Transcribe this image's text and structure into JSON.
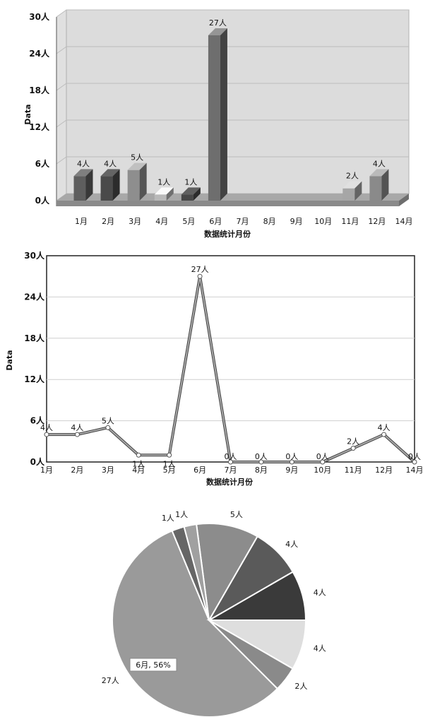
{
  "chart_data": [
    {
      "type": "bar",
      "style": "3d",
      "categories": [
        "1月",
        "2月",
        "3月",
        "4月",
        "5月",
        "6月",
        "7月",
        "8月",
        "9月",
        "10月",
        "11月",
        "12月",
        "14月"
      ],
      "values": [
        4,
        4,
        5,
        1,
        1,
        27,
        null,
        null,
        null,
        null,
        2,
        4,
        null
      ],
      "data_labels": [
        "4人",
        "4人",
        "5人",
        "1人",
        "1人",
        "27人",
        "",
        "",
        "",
        "",
        "2人",
        "4人",
        ""
      ],
      "bar_colors": [
        "#5e5e5e",
        "#4a4a4a",
        "#8e8e8e",
        "#b9b9b9",
        "#474747",
        "#6e6e6e",
        "",
        "",
        "",
        "",
        "#a6a6a6",
        "#8a8a8a",
        ""
      ],
      "y_ticks": [
        "0人",
        "6人",
        "12人",
        "18人",
        "24人",
        "30人"
      ],
      "ylim": [
        0,
        30
      ],
      "ylabel": "Data",
      "xlabel": "数据统计月份",
      "grid": true
    },
    {
      "type": "line",
      "categories": [
        "1月",
        "2月",
        "3月",
        "4月",
        "5月",
        "6月",
        "7月",
        "8月",
        "9月",
        "10月",
        "11月",
        "12月",
        "14月"
      ],
      "values": [
        4,
        4,
        5,
        1,
        1,
        27,
        0,
        0,
        0,
        0,
        2,
        4,
        0
      ],
      "data_labels": [
        "4人",
        "4人",
        "5人",
        "1人",
        "1人",
        "27人",
        "0人",
        "0人",
        "0人",
        "0人",
        "2人",
        "4人",
        "0人"
      ],
      "y_ticks": [
        "0人",
        "6人",
        "12人",
        "18人",
        "24人",
        "30人"
      ],
      "ylim": [
        0,
        30
      ],
      "ylabel": "Data",
      "xlabel": "数据统计月份",
      "grid": true
    },
    {
      "type": "pie",
      "slices": [
        {
          "label": "4人",
          "value": 4,
          "color": "#3a3a3a"
        },
        {
          "label": "4人",
          "value": 4,
          "color": "#5a5a5a"
        },
        {
          "label": "5人",
          "value": 5,
          "color": "#8c8c8c"
        },
        {
          "label": "1人",
          "value": 1,
          "color": "#a0a0a0"
        },
        {
          "label": "1人",
          "value": 1,
          "color": "#666666"
        },
        {
          "label": "27人",
          "value": 27,
          "color": "#9a9a9a"
        },
        {
          "label": "2人",
          "value": 2,
          "color": "#8a8a8a"
        },
        {
          "label": "4人",
          "value": 4,
          "color": "#dedede"
        }
      ],
      "tooltip": "6月, 56%"
    }
  ]
}
